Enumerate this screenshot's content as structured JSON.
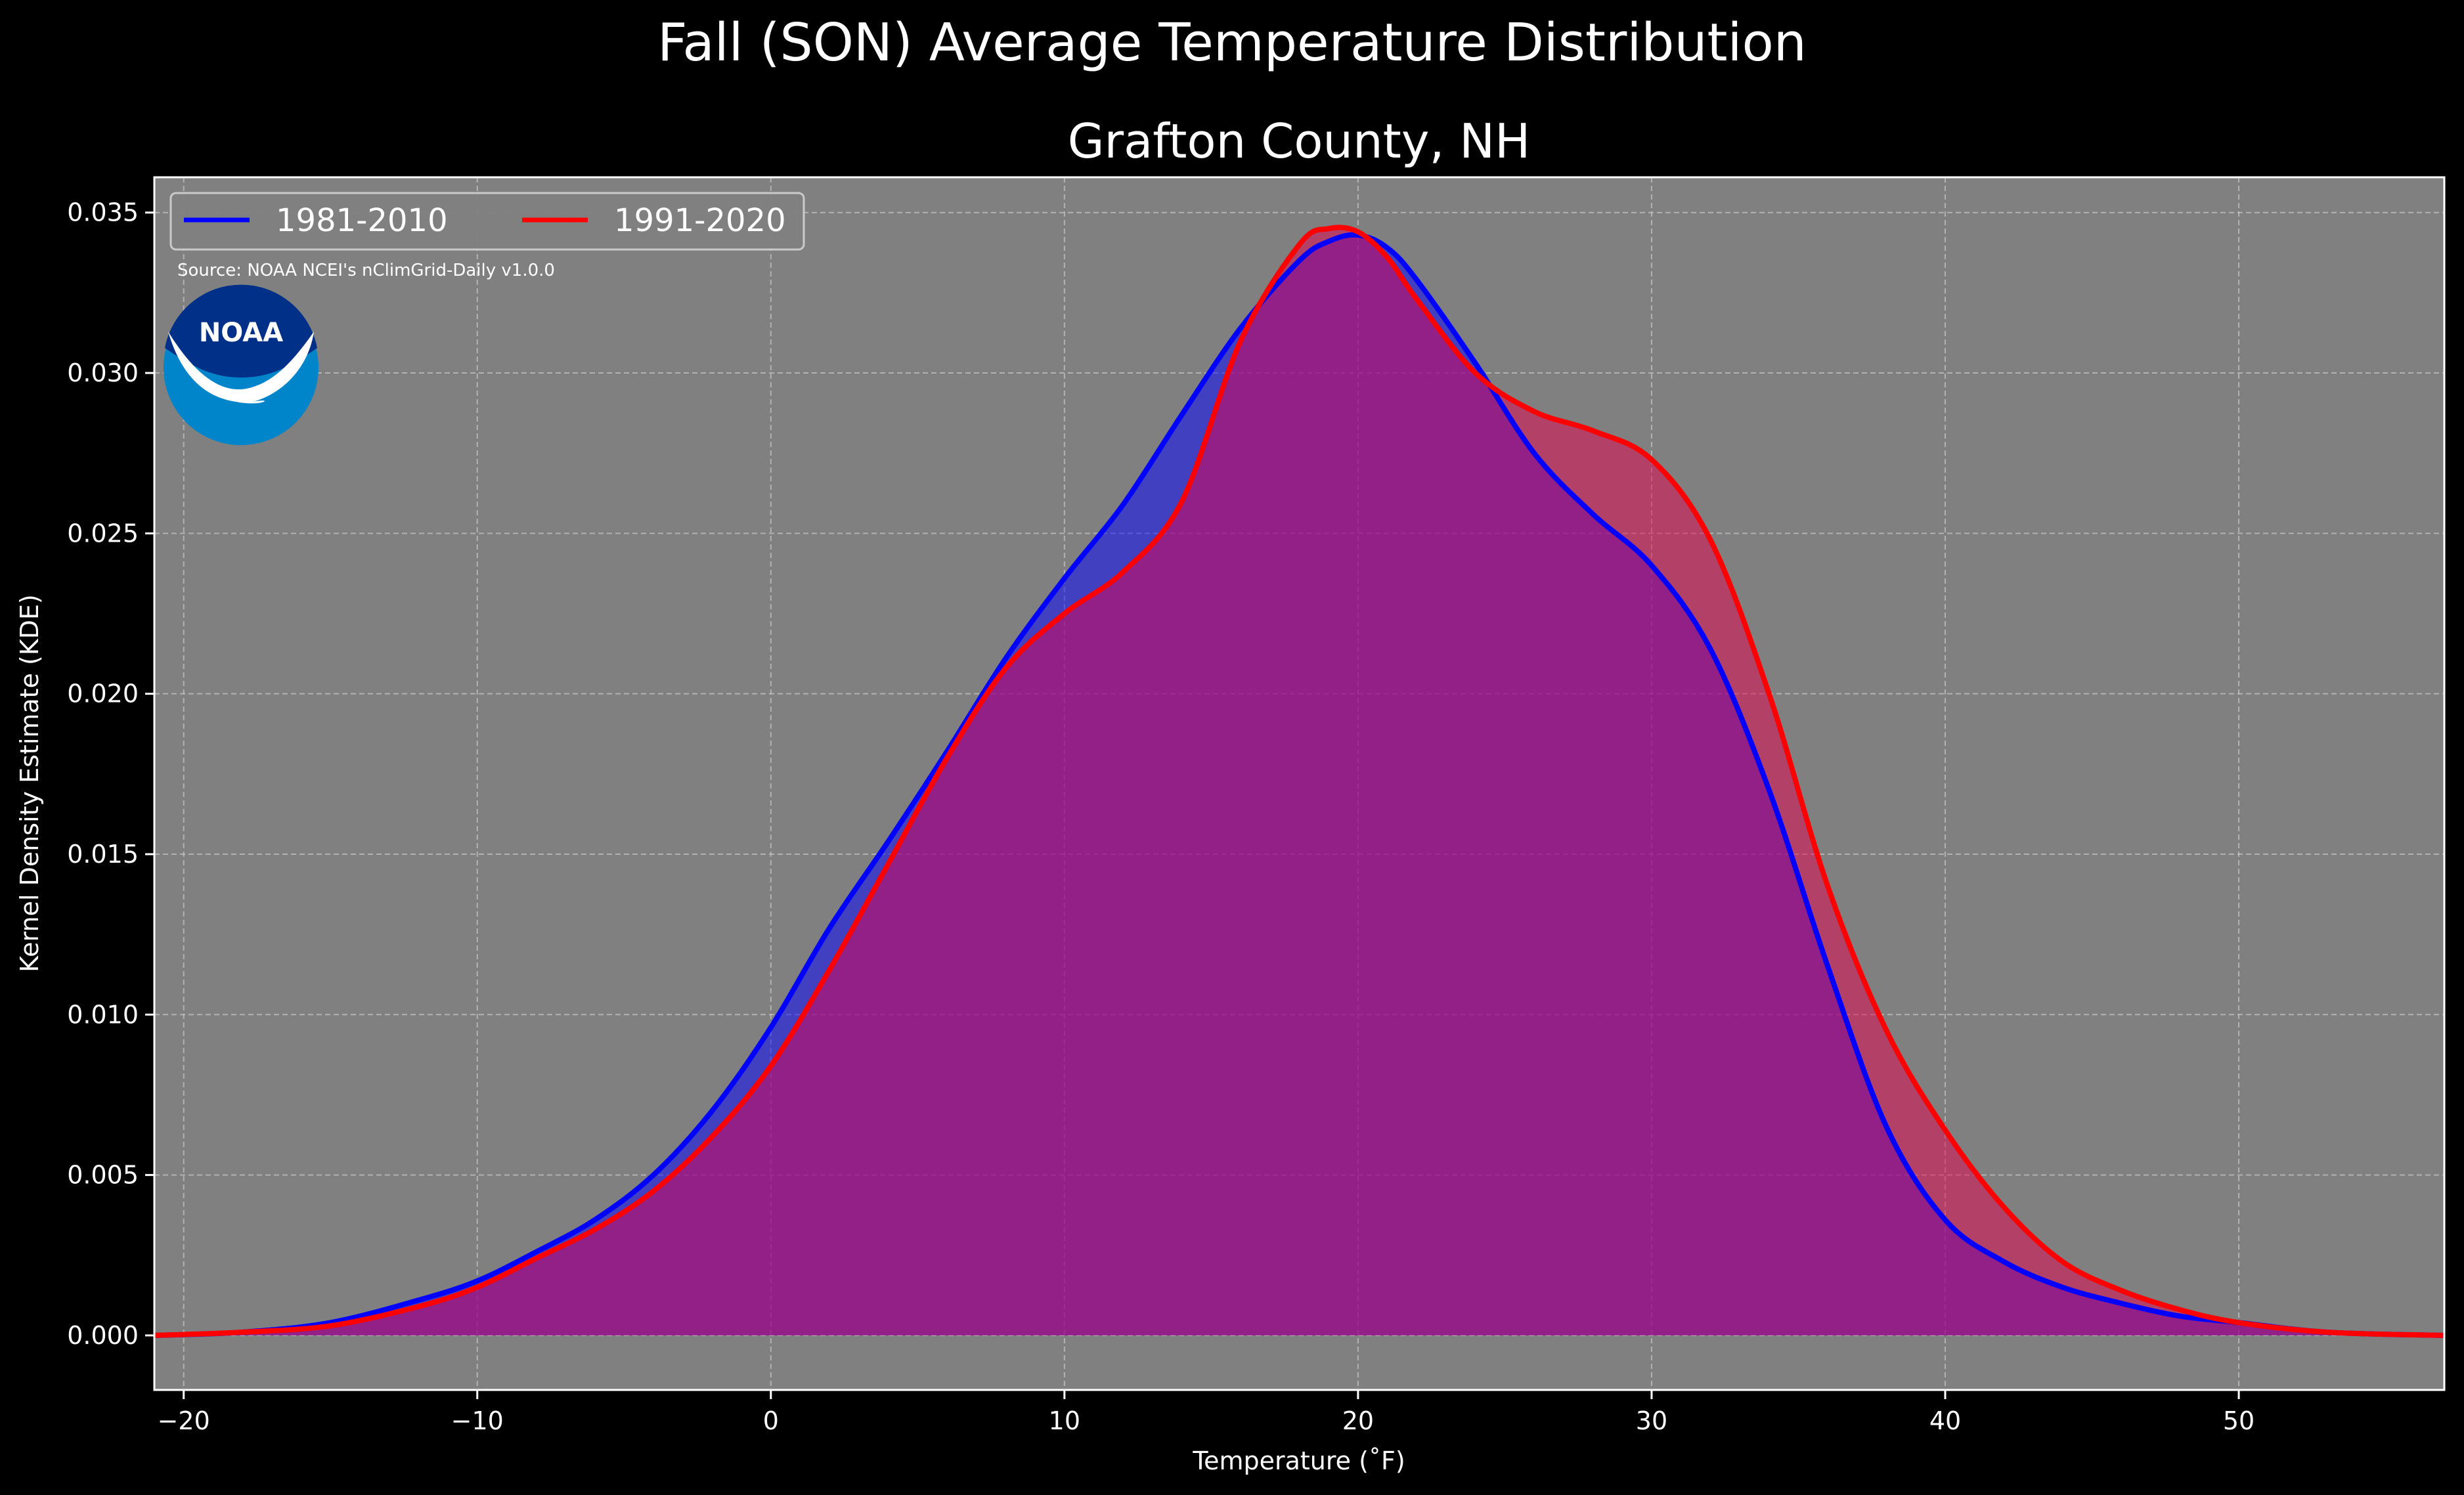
{
  "chart_data": {
    "type": "area",
    "suptitle": "Fall (SON) Average Temperature Distribution",
    "title": "Grafton County, NH",
    "xlabel": "Temperature ($^\\circ$F)",
    "xlabel_display": "Temperature (˚F)",
    "ylabel": "Kernel Density Estimate (KDE)",
    "xlim": [
      -21,
      57
    ],
    "ylim": [
      -0.0017,
      0.0361
    ],
    "xticks": [
      -20,
      -10,
      0,
      10,
      20,
      30,
      40,
      50
    ],
    "xtick_labels": [
      "−20",
      "−10",
      "0",
      "10",
      "20",
      "30",
      "40",
      "50"
    ],
    "yticks": [
      0.0,
      0.005,
      0.01,
      0.015,
      0.02,
      0.025,
      0.03,
      0.035
    ],
    "ytick_labels": [
      "0.000",
      "0.005",
      "0.010",
      "0.015",
      "0.020",
      "0.025",
      "0.030",
      "0.035"
    ],
    "grid": true,
    "legend_position": "top-left",
    "annotation": "Source: NOAA NCEI's nClimGrid-Daily v1.0.0",
    "logo_text": "NOAA",
    "background_color": "#808080",
    "figure_color": "#000000",
    "series": [
      {
        "name": "1981-2010",
        "color": "#0000ff",
        "fill": "#0000ff",
        "x": [
          -21,
          -18,
          -15,
          -12,
          -10,
          -8,
          -6,
          -4,
          -2,
          0,
          2,
          4,
          6,
          8,
          10,
          12,
          14,
          16,
          18,
          19,
          20,
          21,
          22,
          24,
          26,
          28,
          30,
          32,
          34,
          36,
          38,
          40,
          42,
          44,
          46,
          48,
          50,
          53,
          57
        ],
        "y": [
          0.0,
          0.0001,
          0.0004,
          0.0011,
          0.0017,
          0.0026,
          0.0036,
          0.005,
          0.007,
          0.0096,
          0.0127,
          0.0154,
          0.0182,
          0.0211,
          0.0236,
          0.0259,
          0.0287,
          0.0314,
          0.0335,
          0.0341,
          0.0343,
          0.0339,
          0.0329,
          0.0303,
          0.0275,
          0.0256,
          0.024,
          0.0214,
          0.017,
          0.0115,
          0.0065,
          0.0036,
          0.0023,
          0.0015,
          0.001,
          0.0006,
          0.0004,
          0.0001,
          0.0
        ]
      },
      {
        "name": "1991-2020",
        "color": "#ff0000",
        "fill": "#e6004c",
        "x": [
          -21,
          -18,
          -15,
          -12,
          -10,
          -8,
          -6,
          -4,
          -2,
          0,
          2,
          4,
          6,
          8,
          10,
          12,
          14,
          16,
          18,
          19,
          20,
          21,
          22,
          24,
          26,
          28,
          30,
          32,
          34,
          36,
          38,
          40,
          42,
          44,
          46,
          48,
          50,
          53,
          57
        ],
        "y": [
          0.0,
          0.0001,
          0.0003,
          0.0009,
          0.0015,
          0.0024,
          0.0033,
          0.0045,
          0.0062,
          0.0084,
          0.0114,
          0.0147,
          0.018,
          0.0208,
          0.0225,
          0.0238,
          0.026,
          0.031,
          0.034,
          0.0345,
          0.0344,
          0.0336,
          0.0323,
          0.03,
          0.0288,
          0.0282,
          0.0273,
          0.0248,
          0.02,
          0.014,
          0.0095,
          0.0064,
          0.004,
          0.0023,
          0.0014,
          0.0008,
          0.0004,
          0.0001,
          0.0
        ]
      }
    ]
  }
}
